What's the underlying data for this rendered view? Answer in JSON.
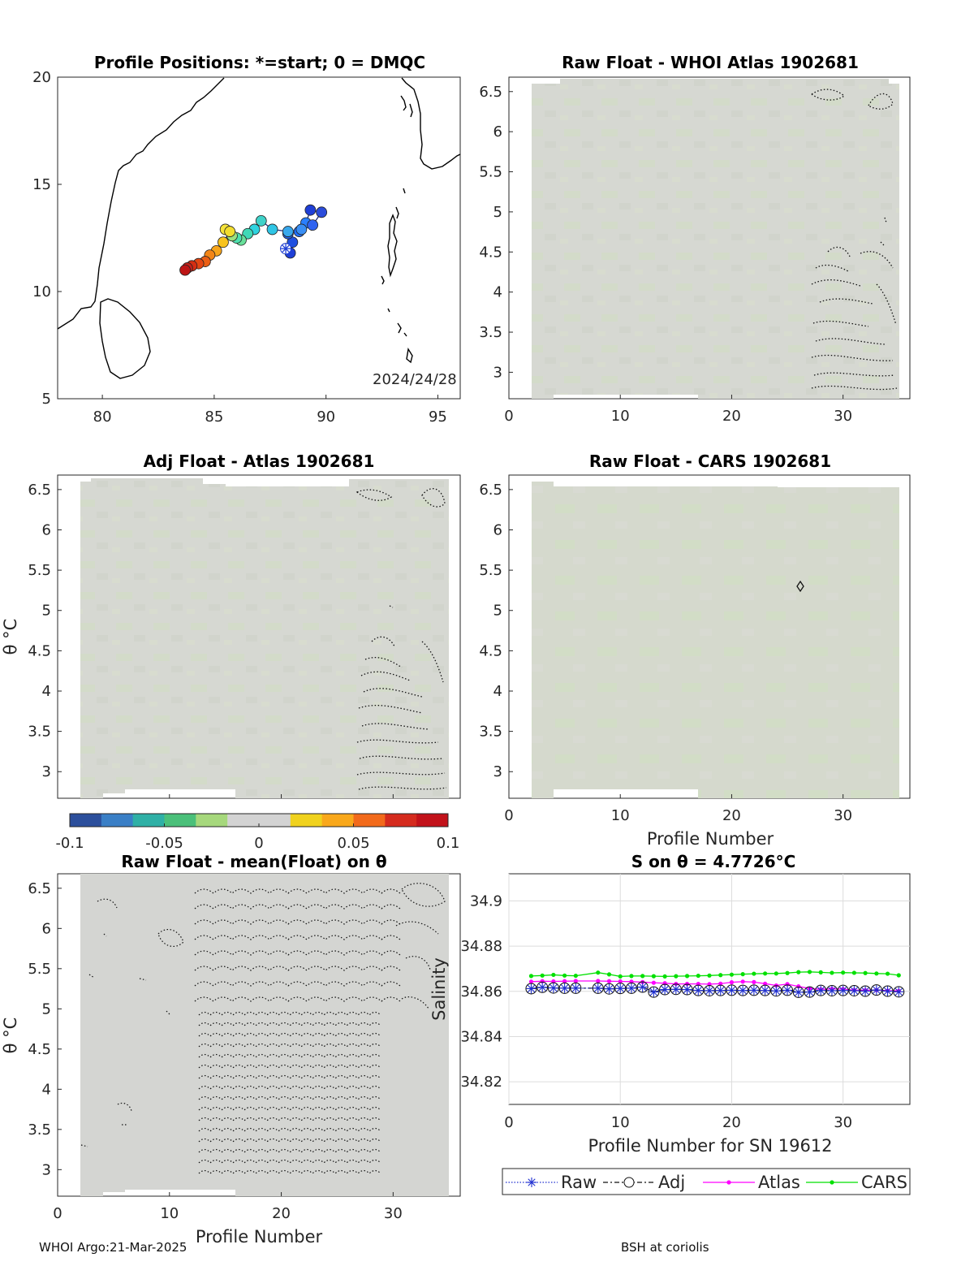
{
  "footer": {
    "left": "WHOI Argo:21-Mar-2025",
    "right": "BSH at coriolis"
  },
  "colorbar": {
    "ticks": [
      "-0.1",
      "-0.05",
      "0",
      "0.05",
      "0.1"
    ],
    "range": [
      -0.1,
      0.1
    ],
    "colors": [
      "#2c4f9c",
      "#3a7fc6",
      "#2fb0a6",
      "#4bc07a",
      "#a6d87c",
      "#d3d3d3",
      "#d3d3d3",
      "#f0d21e",
      "#f9a81b",
      "#f26a1b",
      "#d52b1e",
      "#c2121a"
    ]
  },
  "map": {
    "title": "Profile Positions: *=start; 0 = DMQC",
    "date_label": "2024/24/28",
    "x_ticks": [
      "80",
      "85",
      "90",
      "95"
    ],
    "y_ticks": [
      "5",
      "10",
      "15",
      "20"
    ],
    "xlim": [
      78,
      96
    ],
    "ylim": [
      5,
      20
    ],
    "start": {
      "lon": 88.2,
      "lat": 12.0
    }
  },
  "contour_panels": {
    "p_ticks": [
      "0",
      "10",
      "20",
      "30"
    ],
    "theta_ticks": [
      "3",
      "3.5",
      "4",
      "4.5",
      "5",
      "5.5",
      "6",
      "6.5"
    ],
    "xlim": [
      0,
      36
    ],
    "ylim": [
      2.67,
      6.68
    ],
    "panel_raw_atlas": {
      "title": "Raw Float - WHOI Atlas  1902681"
    },
    "panel_adj_atlas": {
      "title": "Adj Float - Atlas  1902681",
      "ylabel": "θ °C"
    },
    "panel_raw_cars": {
      "title": "Raw Float - CARS  1902681",
      "xlabel": "Profile Number"
    },
    "panel_raw_mean": {
      "title": "Raw Float - mean(Float) on θ",
      "ylabel": "θ °C",
      "xlabel": "Profile Number"
    }
  },
  "chart_data": [
    {
      "type": "scatter",
      "title": "Profile Positions: *=start; 0 = DMQC",
      "xlim": [
        78,
        96
      ],
      "ylim": [
        5,
        20
      ],
      "x": [
        88.2,
        88.4,
        88.5,
        88.3,
        88.8,
        89.1,
        89.3,
        89.8,
        89.4,
        88.9,
        88.3,
        87.6,
        87.1,
        86.8,
        86.5,
        86.2,
        86.0,
        85.8,
        85.5,
        85.7,
        85.4,
        85.1,
        84.8,
        84.6,
        84.3,
        84.0,
        83.8,
        83.7
      ],
      "y": [
        12.0,
        11.8,
        12.3,
        12.7,
        12.8,
        13.2,
        13.8,
        13.7,
        13.1,
        12.9,
        12.8,
        12.9,
        13.3,
        12.9,
        12.7,
        12.4,
        12.5,
        12.6,
        12.9,
        12.8,
        12.3,
        11.9,
        11.7,
        11.4,
        11.3,
        11.2,
        11.1,
        11.0
      ],
      "colors": [
        "#1f3fd6",
        "#1f3fd6",
        "#2050e0",
        "#2060e8",
        "#1f6fff",
        "#2a7fff",
        "#1f3fd6",
        "#2b4cdb",
        "#2f63f0",
        "#3a8ff5",
        "#38a8ec",
        "#2fc5e5",
        "#3fd2c9",
        "#2fd3df",
        "#40d8b7",
        "#68e09a",
        "#4fe0ae",
        "#9be07e",
        "#f5e33a",
        "#f2dd2e",
        "#f8c31e",
        "#f7a51a",
        "#f28516",
        "#eb5f14",
        "#e34613",
        "#d52e12",
        "#c8211a",
        "#bd1515"
      ]
    },
    {
      "type": "line",
      "title": "S on θ = 4.7726°C",
      "xlabel": "Profile Number for SN 19612",
      "ylabel": "Salinity",
      "xlim": [
        0,
        36
      ],
      "ylim": [
        34.81,
        34.912
      ],
      "x_ticks": [
        "0",
        "10",
        "20",
        "30"
      ],
      "y_ticks": [
        "34.82",
        "34.84",
        "34.86",
        "34.88",
        "34.9"
      ],
      "x": [
        2,
        3,
        4,
        5,
        6,
        8,
        9,
        10,
        11,
        12,
        13,
        14,
        15,
        16,
        17,
        18,
        19,
        20,
        21,
        22,
        23,
        24,
        25,
        26,
        27,
        28,
        29,
        30,
        31,
        32,
        33,
        34,
        35
      ],
      "legend": [
        "Raw",
        "Adj",
        "Atlas",
        "CARS"
      ],
      "series": [
        {
          "name": "Raw",
          "color": "#1f2fd0",
          "values": [
            34.8612,
            34.8618,
            34.8615,
            34.8614,
            34.8614,
            34.8614,
            34.8611,
            34.8613,
            34.8614,
            34.8619,
            34.8597,
            34.8608,
            34.8609,
            34.8608,
            34.8604,
            34.8603,
            34.8604,
            34.8605,
            34.8604,
            34.8605,
            34.8604,
            34.8602,
            34.8605,
            34.8596,
            34.8597,
            34.8604,
            34.8603,
            34.8604,
            34.8603,
            34.8601,
            34.8606,
            34.8601,
            34.8598
          ]
        },
        {
          "name": "Adj",
          "color": "#111111",
          "values": [
            34.8612,
            34.8618,
            34.8615,
            34.8614,
            34.8614,
            34.8614,
            34.8611,
            34.8613,
            34.8614,
            34.8619,
            34.8597,
            34.8608,
            34.8609,
            34.8608,
            34.8604,
            34.8603,
            34.8604,
            34.8605,
            34.8604,
            34.8605,
            34.8604,
            34.8602,
            34.8605,
            34.8596,
            34.8597,
            34.8604,
            34.8603,
            34.8604,
            34.8603,
            34.8601,
            34.8606,
            34.8601,
            34.8598
          ]
        },
        {
          "name": "Atlas",
          "color": "#ff00ff",
          "values": [
            34.8643,
            34.8645,
            34.8644,
            34.8645,
            34.8646,
            34.8646,
            34.8645,
            34.8644,
            34.8643,
            34.8641,
            34.8638,
            34.8636,
            34.8633,
            34.8633,
            34.8633,
            34.8632,
            34.8634,
            34.864,
            34.8643,
            34.8641,
            34.8634,
            34.8626,
            34.8632,
            34.8622,
            34.8613,
            34.8609,
            34.8611,
            34.861,
            34.8606,
            34.8605,
            34.8606,
            34.8603,
            34.8602
          ]
        },
        {
          "name": "CARS",
          "color": "#00e000",
          "values": [
            34.8668,
            34.867,
            34.8673,
            34.867,
            34.8669,
            34.8683,
            34.8675,
            34.8666,
            34.8668,
            34.8668,
            34.8667,
            34.8666,
            34.8667,
            34.8668,
            34.8669,
            34.867,
            34.8672,
            34.8674,
            34.8676,
            34.8678,
            34.8679,
            34.8679,
            34.8681,
            34.8685,
            34.8686,
            34.8684,
            34.8682,
            34.8683,
            34.8682,
            34.8681,
            34.8679,
            34.8678,
            34.8671
          ]
        }
      ]
    }
  ]
}
